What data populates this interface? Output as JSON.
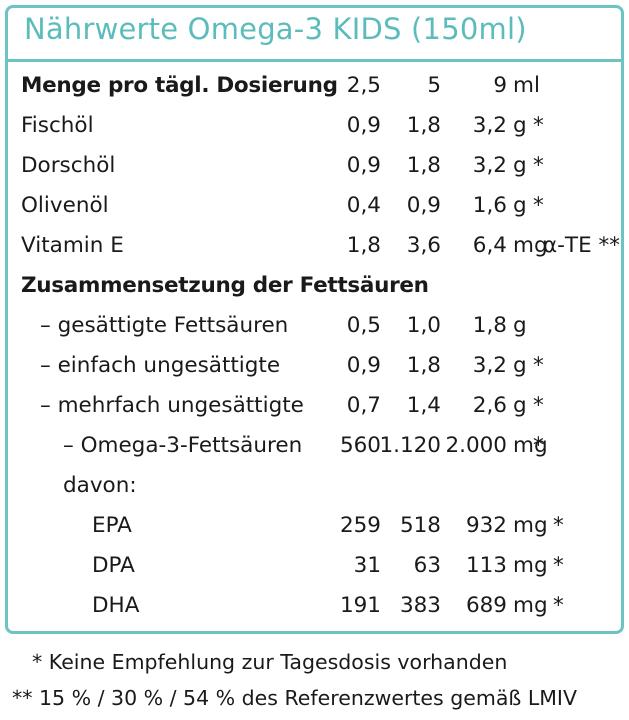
{
  "title": "Nährwerte Omega-3 KIDS (150ml)",
  "header": {
    "label": "Menge pro tägl. Dosierung",
    "v1": "2,5",
    "v2": "5",
    "v3": "9",
    "unit": "ml"
  },
  "rows": [
    {
      "label": "Fischöl",
      "v1": "0,9",
      "v2": "1,8",
      "v3": "3,2",
      "unit": "g",
      "mark": "*"
    },
    {
      "label": "Dorschöl",
      "v1": "0,9",
      "v2": "1,8",
      "v3": "3,2",
      "unit": "g",
      "mark": "*"
    },
    {
      "label": "Olivenöl",
      "v1": "0,4",
      "v2": "0,9",
      "v3": "1,6",
      "unit": "g",
      "mark": "*"
    },
    {
      "label": "Vitamin E",
      "v1": "1,8",
      "v2": "3,6",
      "v3": "6,4",
      "unit": "mg",
      "mark": "α-TE **"
    }
  ],
  "section_heading": "Zusammensetzung der Fettsäuren",
  "fat_rows": [
    {
      "label": "– gesättigte Fettsäuren",
      "v1": "0,5",
      "v2": "1,0",
      "v3": "1,8",
      "unit": "g",
      "mark": ""
    },
    {
      "label": "– einfach ungesättigte",
      "v1": "0,9",
      "v2": "1,8",
      "v3": "3,2",
      "unit": "g",
      "mark": "*"
    },
    {
      "label": "– mehrfach ungesättigte",
      "v1": "0,7",
      "v2": "1,4",
      "v3": "2,6",
      "unit": "g",
      "mark": "*"
    },
    {
      "label": "– Omega-3-Fettsäuren",
      "v1": "560",
      "v2": "1.120",
      "v3": "2.000",
      "unit": "mg",
      "mark": "*"
    }
  ],
  "davon_label": "davon:",
  "sub_rows": [
    {
      "label": "EPA",
      "v1": "259",
      "v2": "518",
      "v3": "932",
      "unit": "mg",
      "mark": "*"
    },
    {
      "label": "DPA",
      "v1": "31",
      "v2": "63",
      "v3": "113",
      "unit": "mg",
      "mark": "*"
    },
    {
      "label": "DHA",
      "v1": "191",
      "v2": "383",
      "v3": "689",
      "unit": "mg",
      "mark": "*"
    }
  ],
  "footnotes": [
    "* Keine Empfehlung zur Tagesdosis vorhanden",
    "** 15 % / 30 % / 54 % des Referenzwertes gemäß LMIV"
  ],
  "colors": {
    "accent": "#5cbcbc",
    "border": "#6cc3c3",
    "text": "#1a1a1a"
  }
}
